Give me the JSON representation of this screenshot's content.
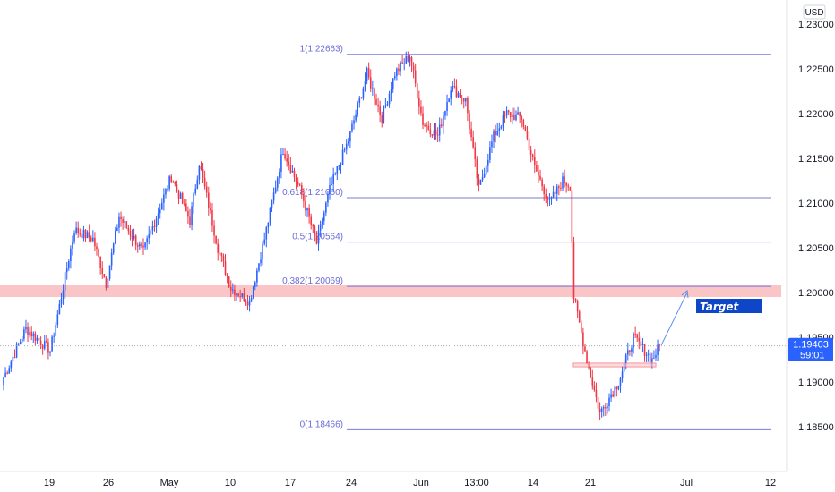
{
  "currency_badge": "USD",
  "target_label": "Target",
  "current_price_label": "1.19403",
  "countdown_label": "59:01",
  "colors": {
    "up": "#2962ff",
    "down": "#f23645",
    "fib": "#7b7bd9",
    "zone": "#f7b6b9",
    "target_bg": "#0d47c7",
    "price_tag": "#2962ff"
  },
  "chart_data": {
    "type": "candlestick",
    "x_ticks": [
      "19",
      "26",
      "May",
      "10",
      "17",
      "24",
      "Jun",
      "13:00",
      "14",
      "21",
      "Jul",
      "12"
    ],
    "y_ticks": [
      "1.18500",
      "1.19000",
      "1.19500",
      "1.20000",
      "1.20500",
      "1.21000",
      "1.21500",
      "1.22000",
      "1.22500",
      "1.23000"
    ],
    "ylim": [
      1.182,
      1.2325
    ],
    "grid": false,
    "fib_levels": [
      {
        "label": "1(1.22663)",
        "value": 1.22663
      },
      {
        "label": "0.618(1.21060)",
        "value": 1.2106
      },
      {
        "label": "0.5(1.20564)",
        "value": 1.20564
      },
      {
        "label": "0.382(1.20069)",
        "value": 1.20069
      },
      {
        "label": "0(1.18466)",
        "value": 1.18466
      }
    ],
    "resistance_zone": [
      1.1995,
      1.2008
    ],
    "current_price": 1.19403,
    "key_points": [
      [
        0,
        1.1905
      ],
      [
        12,
        1.196
      ],
      [
        25,
        1.1935
      ],
      [
        30,
        1.1985
      ],
      [
        38,
        1.207
      ],
      [
        48,
        1.206
      ],
      [
        55,
        1.201
      ],
      [
        62,
        1.2085
      ],
      [
        75,
        1.2045
      ],
      [
        90,
        1.213
      ],
      [
        100,
        1.208
      ],
      [
        105,
        1.2145
      ],
      [
        115,
        1.205
      ],
      [
        122,
        1.2005
      ],
      [
        132,
        1.199
      ],
      [
        140,
        1.206
      ],
      [
        150,
        1.216
      ],
      [
        160,
        1.211
      ],
      [
        168,
        1.2055
      ],
      [
        175,
        1.2115
      ],
      [
        185,
        1.217
      ],
      [
        195,
        1.2245
      ],
      [
        203,
        1.2195
      ],
      [
        210,
        1.2245
      ],
      [
        218,
        1.2265
      ],
      [
        225,
        1.219
      ],
      [
        233,
        1.2175
      ],
      [
        240,
        1.223
      ],
      [
        248,
        1.2215
      ],
      [
        255,
        1.2115
      ],
      [
        263,
        1.2175
      ],
      [
        270,
        1.22
      ],
      [
        278,
        1.2195
      ],
      [
        285,
        1.214
      ],
      [
        293,
        1.21
      ],
      [
        300,
        1.2125
      ],
      [
        304,
        1.212
      ],
      [
        306,
        1.1995
      ],
      [
        313,
        1.1925
      ],
      [
        320,
        1.1865
      ],
      [
        330,
        1.19
      ],
      [
        338,
        1.195
      ],
      [
        348,
        1.1925
      ],
      [
        352,
        1.194
      ]
    ]
  }
}
